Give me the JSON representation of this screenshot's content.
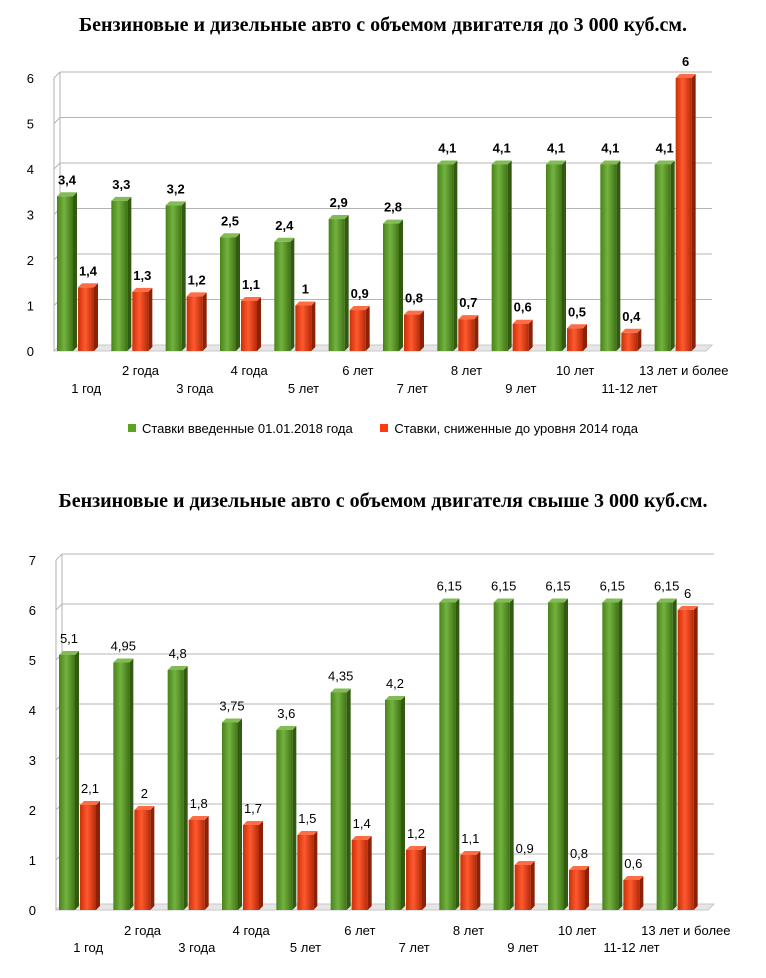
{
  "chart_data": [
    {
      "type": "bar",
      "title": "Бензиновые и дизельные авто с объемом двигателя до 3 000 куб.см.",
      "categories": [
        "1 год",
        "2 года",
        "3 года",
        "4 года",
        "5 лет",
        "6 лет",
        "7 лет",
        "8 лет",
        "9 лет",
        "10 лет",
        "11-12 лет",
        "13 лет и более"
      ],
      "series": [
        {
          "name": "Ставки  введенные  01.01.2018 года",
          "color": "#5aa41e",
          "values": [
            3.4,
            3.3,
            3.2,
            2.5,
            2.4,
            2.9,
            2.8,
            4.1,
            4.1,
            4.1,
            4.1,
            4.1
          ],
          "labels": [
            "3,4",
            "3,3",
            "3,2",
            "2,5",
            "2,4",
            "2,9",
            "2,8",
            "4,1",
            "4,1",
            "4,1",
            "4,1",
            "4,1"
          ]
        },
        {
          "name": "Ставки, сниженные до уровня 2014 года",
          "color": "#ff3c0a",
          "values": [
            1.4,
            1.3,
            1.2,
            1.1,
            1,
            0.9,
            0.8,
            0.7,
            0.6,
            0.5,
            0.4,
            6
          ],
          "labels": [
            "1,4",
            "1,3",
            "1,2",
            "1,1",
            "1",
            "0,9",
            "0,8",
            "0,7",
            "0,6",
            "0,5",
            "0,4",
            "6"
          ]
        }
      ],
      "ylim": [
        0,
        6
      ],
      "yticks": [
        "0",
        "1",
        "2",
        "3",
        "4",
        "5",
        "6"
      ],
      "grid": true,
      "legend": "bottom"
    },
    {
      "type": "bar",
      "title": "Бензиновые и дизельные авто с объемом двигателя свыше 3 000 куб.см.",
      "categories": [
        "1 год",
        "2 года",
        "3 года",
        "4 года",
        "5 лет",
        "6 лет",
        "7 лет",
        "8 лет",
        "9 лет",
        "10 лет",
        "11-12 лет",
        "13 лет и более"
      ],
      "series": [
        {
          "color": "#5aa41e",
          "values": [
            5.1,
            4.95,
            4.8,
            3.75,
            3.6,
            4.35,
            4.2,
            6.15,
            6.15,
            6.15,
            6.15,
            6.15
          ],
          "labels": [
            "5,1",
            "4,95",
            "4,8",
            "3,75",
            "3,6",
            "4,35",
            "4,2",
            "6,15",
            "6,15",
            "6,15",
            "6,15",
            "6,15"
          ]
        },
        {
          "color": "#ff3c0a",
          "values": [
            2.1,
            2,
            1.8,
            1.7,
            1.5,
            1.4,
            1.2,
            1.1,
            0.9,
            0.8,
            0.6,
            6
          ],
          "labels": [
            "2,1",
            "2",
            "1,8",
            "1,7",
            "1,5",
            "1,4",
            "1,2",
            "1,1",
            "0,9",
            "0,8",
            "0,6",
            "6"
          ]
        }
      ],
      "ylim": [
        0,
        7
      ],
      "yticks": [
        "0",
        "1",
        "2",
        "3",
        "4",
        "5",
        "6",
        "7"
      ],
      "grid": true,
      "legend": "none"
    }
  ]
}
